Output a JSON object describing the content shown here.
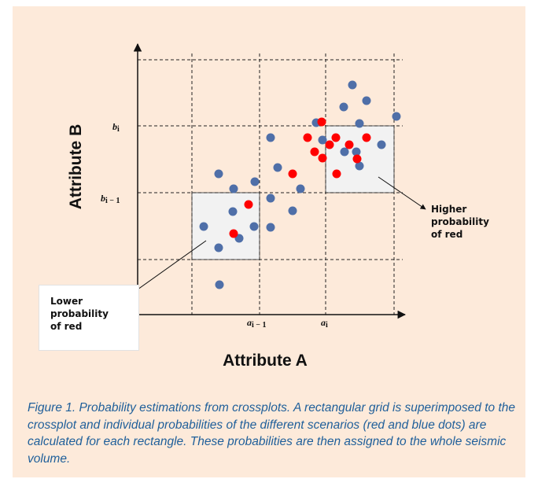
{
  "figure": {
    "y_axis_title": "Attribute B",
    "x_axis_title": "Attribute A",
    "y_ticks": [
      {
        "main": "b",
        "sub": "i"
      },
      {
        "main": "b",
        "sub": "i − 1"
      }
    ],
    "x_ticks": [
      {
        "main": "a",
        "sub": "i − 1"
      },
      {
        "main": "a",
        "sub": "i"
      }
    ],
    "lower_note": "Lower\nprobability\nof red",
    "higher_note": "Higher\nprobability\nof red",
    "colors": {
      "background": "#fdeada",
      "blue_dot": "#4f6fa8",
      "red_dot": "#ff0000",
      "highlight_box": "#f2f2f2"
    }
  },
  "caption": "Figure 1. Probability estimations from crossplots. A rectangular grid is superimposed to the crossplot and individual probabilities of the different scenarios (red and blue dots) are calculated for each rectangle. These probabilities are then assigned to the whole seismic volume."
}
